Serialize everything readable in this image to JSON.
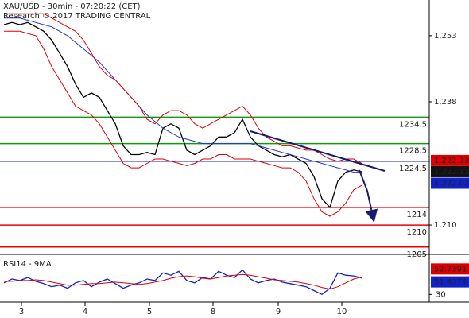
{
  "chart_data": [
    {
      "type": "line",
      "title": "XAU/USD - 30min - 07:20:22 (CET)",
      "subtitle": "Research © 2017 TRADING CENTRAL",
      "xlim": [
        -0.5,
        53.5
      ],
      "xticks": [
        {
          "value": 2.2,
          "label": "3"
        },
        {
          "value": 10.2,
          "label": "4"
        },
        {
          "value": 18.3,
          "label": "5"
        },
        {
          "value": 26.3,
          "label": "8"
        },
        {
          "value": 34.5,
          "label": "9"
        },
        {
          "value": 42.5,
          "label": "10"
        }
      ],
      "ylim": [
        1203.7,
        1261.1
      ],
      "yticks": [
        {
          "value": 1253,
          "label": "1,253"
        },
        {
          "value": 1238,
          "label": "1,238"
        },
        {
          "value": 1210,
          "label": "1,210"
        }
      ],
      "series": [
        {
          "name": "Price",
          "color": "#000000",
          "values": [
            1255.5,
            1256,
            1255.5,
            1256,
            1255,
            1254,
            1252,
            1249,
            1246,
            1242,
            1239,
            1240,
            1239,
            1236,
            1233,
            1228,
            1226,
            1226,
            1226.5,
            1226,
            1232,
            1233,
            1232,
            1227,
            1226,
            1227,
            1228,
            1230,
            1230,
            1231,
            1234,
            1230,
            1228,
            1227,
            1226,
            1225.5,
            1226,
            1225,
            1224,
            1221,
            1216,
            1214,
            1220,
            1222,
            1222.5,
            1222.12
          ]
        },
        {
          "name": "Moving average",
          "color": "#2233cc",
          "values": [
            1257,
            1257,
            1257,
            1256.5,
            1256,
            1255.5,
            1255,
            1254,
            1253,
            1251.5,
            1250,
            1248.5,
            1247,
            1245,
            1243,
            1241,
            1239,
            1237,
            1235,
            1233.5,
            1232,
            1231,
            1230,
            1229.5,
            1229,
            1228.5,
            1228.5,
            1228.5,
            1228.5,
            1228.5,
            1228.5,
            1228.5,
            1228,
            1227.5,
            1227,
            1226.5,
            1226,
            1225.5,
            1225,
            1224.5,
            1224,
            1223.5,
            1223,
            1222.5,
            1222,
            1222
          ]
        },
        {
          "name": "Upper band",
          "color": "#dd0000",
          "values": [
            1258,
            1258,
            1258,
            1258,
            1258,
            1258,
            1257,
            1256,
            1255,
            1254,
            1252,
            1249,
            1246,
            1244,
            1243,
            1241,
            1239,
            1237,
            1234,
            1233,
            1235,
            1236,
            1236,
            1235,
            1233,
            1232,
            1233,
            1234,
            1235,
            1236,
            1237,
            1235,
            1232,
            1230,
            1229,
            1228,
            1228,
            1227.5,
            1227,
            1227,
            1226,
            1225,
            1224.5,
            1225,
            1225,
            1224
          ]
        },
        {
          "name": "Lower band",
          "color": "#dd0000",
          "values": [
            1254,
            1254,
            1254,
            1253.5,
            1253,
            1250,
            1246,
            1243,
            1240,
            1237,
            1236,
            1235,
            1233,
            1230,
            1227,
            1224,
            1223,
            1223,
            1224,
            1225,
            1225,
            1224.5,
            1224,
            1223.5,
            1224,
            1225,
            1225,
            1226,
            1226,
            1225,
            1225,
            1225,
            1224.5,
            1224,
            1223.5,
            1223,
            1223,
            1222,
            1220,
            1216,
            1213,
            1212,
            1213,
            1215,
            1218,
            1219
          ]
        }
      ],
      "levels": [
        {
          "value": 1234.5,
          "color": "#119911"
        },
        {
          "value": 1228.5,
          "color": "#119911"
        },
        {
          "value": 1224.5,
          "color": "#1122aa"
        },
        {
          "value": 1214,
          "color": "#ee0000"
        },
        {
          "value": 1210,
          "color": "#ee0000"
        },
        {
          "value": 1205,
          "color": "#ee0000"
        }
      ],
      "price_labels": [
        {
          "value": 1222.13,
          "label": "1,222.13",
          "color": "#dd0000"
        },
        {
          "value": 1222.12,
          "label": "1,222.12",
          "color": "#111111"
        },
        {
          "value": 1222.02,
          "label": "1,222.02",
          "color": "#1122cc"
        }
      ]
    },
    {
      "type": "line",
      "title": "RSI14 - 9MA",
      "ylim": [
        20,
        80
      ],
      "yticks": [
        30
      ],
      "series": [
        {
          "name": "RSI14",
          "color": "#1122cc",
          "values": [
            45,
            50,
            48,
            52,
            47,
            44,
            40,
            42,
            38,
            45,
            48,
            40,
            46,
            50,
            44,
            38,
            42,
            45,
            50,
            48,
            58,
            55,
            60,
            48,
            45,
            52,
            50,
            60,
            55,
            52,
            62,
            50,
            45,
            48,
            50,
            46,
            44,
            42,
            40,
            35,
            30,
            38,
            58,
            55,
            54,
            51.4374
          ]
        },
        {
          "name": "9MA",
          "color": "#dd0000",
          "values": [
            47,
            47,
            48,
            48,
            49,
            48,
            46,
            44,
            42,
            42,
            43,
            44,
            44,
            45,
            46,
            45,
            44,
            43,
            44,
            46,
            48,
            51,
            53,
            54,
            53,
            51,
            50,
            52,
            54,
            55,
            56,
            55,
            53,
            51,
            49,
            48,
            47,
            46,
            44,
            42,
            39,
            37,
            40,
            45,
            50,
            52.7391
          ]
        }
      ]
    }
  ]
}
